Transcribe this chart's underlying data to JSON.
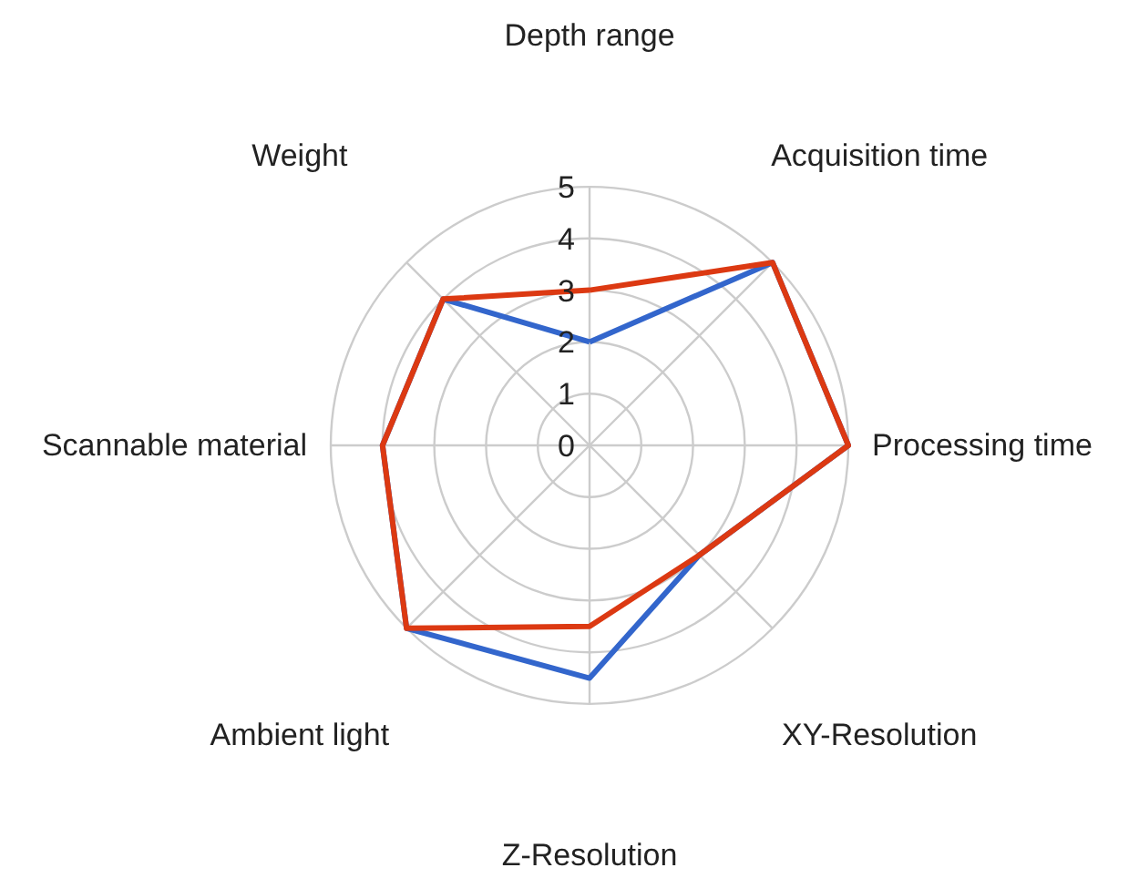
{
  "chart_data": {
    "type": "radar",
    "categories": [
      "Depth range",
      "Acquisition time",
      "Processing time",
      "XY-Resolution",
      "Z-Resolution",
      "Ambient light",
      "Scannable material",
      "Weight"
    ],
    "series": [
      {
        "color": "#3366cc",
        "values": [
          2,
          5,
          5,
          3,
          4.5,
          5,
          4,
          4
        ]
      },
      {
        "color": "#dc3912",
        "values": [
          3,
          5,
          5,
          3,
          3.5,
          5,
          4,
          4
        ]
      }
    ],
    "ylim": [
      0,
      5
    ],
    "yticks": [
      0,
      1,
      2,
      3,
      4,
      5
    ],
    "grid": true
  }
}
